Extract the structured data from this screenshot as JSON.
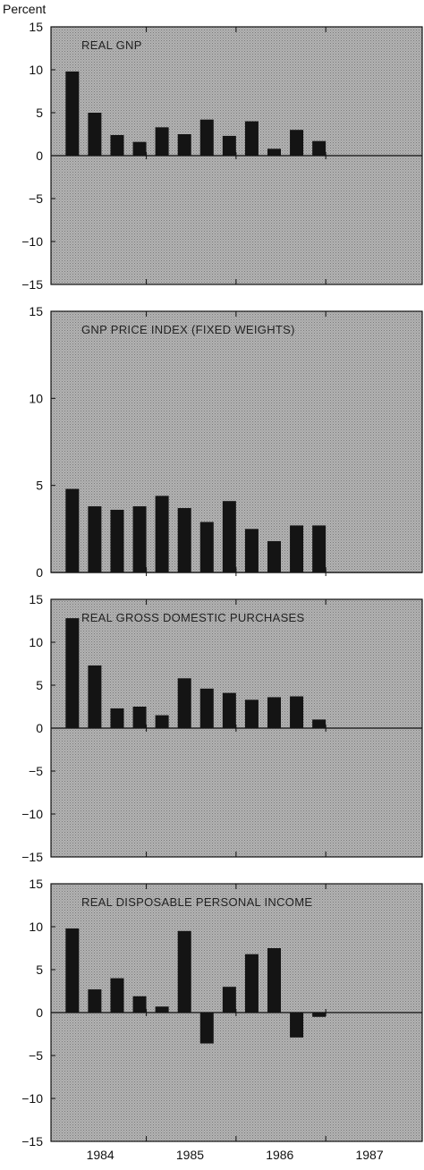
{
  "ylabel": "Percent",
  "x_tick_labels": [
    "1984",
    "1985",
    "1986",
    "1987"
  ],
  "colors": {
    "panel_bg": "#a9a9a9",
    "bar": "#141414",
    "axis": "#111111"
  },
  "chart_data": [
    {
      "type": "bar",
      "title": "REAL GNP",
      "categories": [
        "1984 Q1",
        "1984 Q2",
        "1984 Q3",
        "1984 Q4",
        "1985 Q1",
        "1985 Q2",
        "1985 Q3",
        "1985 Q4",
        "1986 Q1",
        "1986 Q2",
        "1986 Q3",
        "1986 Q4"
      ],
      "values": [
        9.8,
        5.0,
        2.4,
        1.6,
        3.3,
        2.5,
        4.2,
        2.3,
        4.0,
        0.8,
        3.0,
        1.7
      ],
      "ylim": [
        -15,
        15
      ],
      "yticks": [
        15,
        10,
        5,
        0,
        -5,
        -10,
        -15
      ],
      "xlabel": "",
      "ylabel": "Percent",
      "grid": false
    },
    {
      "type": "bar",
      "title": "GNP PRICE INDEX (FIXED WEIGHTS)",
      "categories": [
        "1984 Q1",
        "1984 Q2",
        "1984 Q3",
        "1984 Q4",
        "1985 Q1",
        "1985 Q2",
        "1985 Q3",
        "1985 Q4",
        "1986 Q1",
        "1986 Q2",
        "1986 Q3",
        "1986 Q4"
      ],
      "values": [
        4.8,
        3.8,
        3.6,
        3.8,
        4.4,
        3.7,
        2.9,
        4.1,
        2.5,
        1.8,
        2.7,
        2.7
      ],
      "ylim": [
        0,
        15
      ],
      "yticks": [
        15,
        10,
        5,
        0
      ],
      "xlabel": "",
      "ylabel": "",
      "grid": false
    },
    {
      "type": "bar",
      "title": "REAL GROSS DOMESTIC PURCHASES",
      "categories": [
        "1984 Q1",
        "1984 Q2",
        "1984 Q3",
        "1984 Q4",
        "1985 Q1",
        "1985 Q2",
        "1985 Q3",
        "1985 Q4",
        "1986 Q1",
        "1986 Q2",
        "1986 Q3",
        "1986 Q4"
      ],
      "values": [
        12.8,
        7.3,
        2.3,
        2.5,
        1.5,
        5.8,
        4.6,
        4.1,
        3.3,
        3.6,
        3.7,
        1.0
      ],
      "ylim": [
        -15,
        15
      ],
      "yticks": [
        15,
        10,
        5,
        0,
        -5,
        -10,
        -15
      ],
      "xlabel": "",
      "ylabel": "",
      "grid": false
    },
    {
      "type": "bar",
      "title": "REAL DISPOSABLE PERSONAL INCOME",
      "categories": [
        "1984 Q1",
        "1984 Q2",
        "1984 Q3",
        "1984 Q4",
        "1985 Q1",
        "1985 Q2",
        "1985 Q3",
        "1985 Q4",
        "1986 Q1",
        "1986 Q2",
        "1986 Q3",
        "1986 Q4"
      ],
      "values": [
        9.8,
        2.7,
        4.0,
        1.9,
        0.7,
        9.5,
        -3.6,
        3.0,
        6.8,
        7.5,
        -2.9,
        -0.5
      ],
      "ylim": [
        -15,
        15
      ],
      "yticks": [
        15,
        10,
        5,
        0,
        -5,
        -10,
        -15
      ],
      "xlabel": "",
      "ylabel": "",
      "grid": false
    }
  ]
}
